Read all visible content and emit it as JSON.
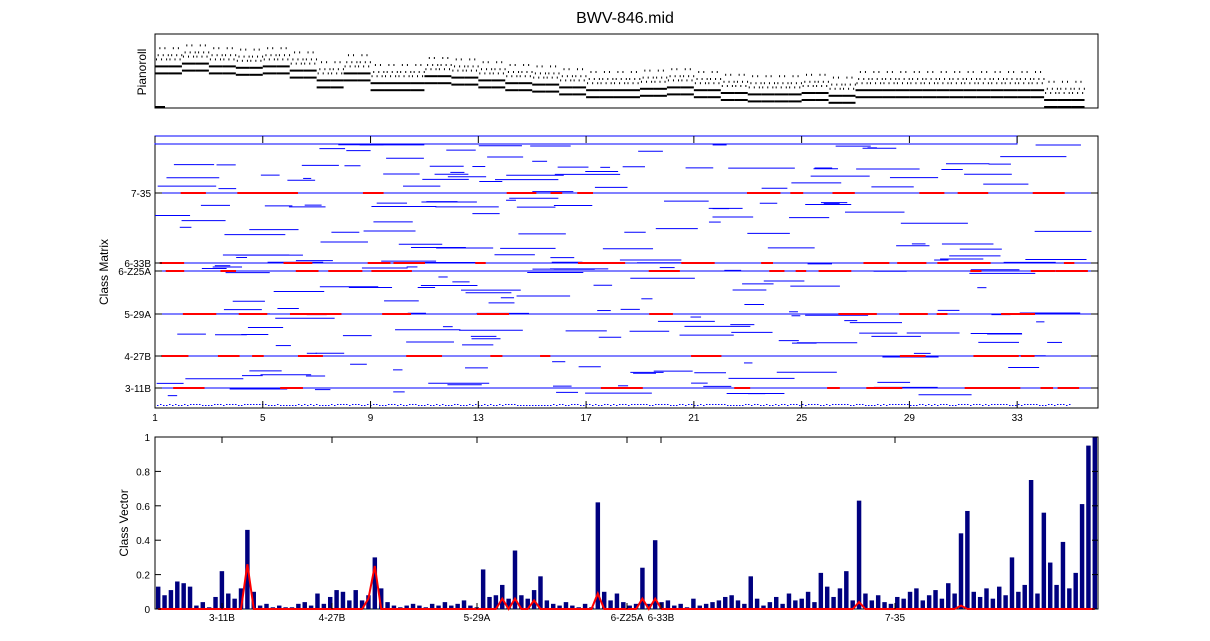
{
  "title": "BWV-846.mid",
  "panels": {
    "pianoroll": {
      "ylabel": "Pianoroll"
    },
    "matrix": {
      "ylabel": "Class Matrix"
    },
    "vector": {
      "ylabel": "Class Vector"
    }
  },
  "colors": {
    "blue": "#0000ff",
    "red": "#ff0000",
    "navy": "#00007f",
    "bar_red": "#ff0000"
  },
  "chart_data": [
    {
      "type": "scatter",
      "panel": "pianoroll",
      "title": "BWV-846.mid",
      "ylabel": "Pianoroll",
      "xlim": [
        1,
        36
      ],
      "grid": false,
      "description_series": [
        {
          "name": "",
          "x_start": [
            1,
            1.5,
            2,
            2.5,
            3,
            3.5,
            4,
            4.5,
            5,
            5.5,
            6,
            6.5,
            7,
            7.5,
            8,
            8.5,
            9,
            9.5,
            10,
            10.5,
            11,
            11.5,
            12,
            12.5,
            13,
            13.5,
            14,
            14.5,
            15,
            15.5,
            16,
            16.5,
            17,
            17.5,
            18,
            18.5,
            19,
            19.5,
            20,
            20.5,
            21,
            21.5,
            22,
            22.5,
            23,
            23.5,
            24,
            24.5,
            25,
            25.5,
            26,
            26.5,
            27,
            27.5,
            28,
            28.5,
            29,
            29.5,
            30,
            30.5,
            31,
            31.5,
            32,
            32.5,
            33,
            33.5,
            34,
            34.5,
            35
          ],
          "pitch": [
            60,
            60,
            62,
            62,
            60,
            60,
            59,
            59,
            60,
            60,
            57,
            57,
            50,
            50,
            55,
            55,
            48,
            48,
            48,
            48,
            53,
            53,
            52,
            52,
            50,
            50,
            48,
            48,
            47,
            47,
            45,
            45,
            43,
            43,
            43,
            43,
            44,
            44,
            45,
            45,
            43,
            43,
            41,
            41,
            40,
            40,
            40,
            40,
            41,
            41,
            39,
            39,
            43,
            43,
            43,
            43,
            43,
            43,
            43,
            43,
            43,
            43,
            43,
            43,
            43,
            43,
            36,
            36,
            36
          ]
        }
      ]
    },
    {
      "type": "line",
      "panel": "matrix",
      "ylabel": "Class Matrix",
      "xticks": [
        1,
        5,
        9,
        13,
        17,
        21,
        25,
        29,
        33
      ],
      "xlim": [
        1,
        36
      ],
      "ytick_labels": [
        "7-35",
        "6-33B",
        "6-Z25A",
        "5-29A",
        "4-27B",
        "3-11B"
      ]
    },
    {
      "type": "bar",
      "panel": "vector",
      "ylabel": "Class Vector",
      "ylim": [
        0,
        1
      ],
      "yticks": [
        "0",
        "0.2",
        "0.4",
        "0.6",
        "0.8",
        "1"
      ],
      "xtick_labels": [
        "3-11B",
        "4-27B",
        "5-29A",
        "6-Z25A",
        "6-33B",
        "7-35"
      ],
      "series": [
        {
          "name": "",
          "color": "#00007f",
          "values": [
            0.13,
            0.08,
            0.11,
            0.16,
            0.15,
            0.13,
            0.02,
            0.04,
            0.01,
            0.07,
            0.22,
            0.09,
            0.06,
            0.12,
            0.46,
            0.1,
            0.02,
            0.03,
            0.01,
            0.02,
            0.01,
            0.01,
            0.03,
            0.04,
            0.02,
            0.09,
            0.03,
            0.07,
            0.11,
            0.1,
            0.05,
            0.11,
            0.05,
            0.08,
            0.3,
            0.12,
            0.04,
            0.02,
            0.01,
            0.02,
            0.03,
            0.02,
            0.01,
            0.03,
            0.02,
            0.04,
            0.02,
            0.03,
            0.05,
            0.02,
            0.01,
            0.23,
            0.07,
            0.08,
            0.14,
            0.06,
            0.34,
            0.08,
            0.06,
            0.11,
            0.19,
            0.05,
            0.03,
            0.02,
            0.04,
            0.02,
            0.01,
            0.03,
            0.01,
            0.62,
            0.1,
            0.05,
            0.09,
            0.04,
            0.02,
            0.03,
            0.24,
            0.03,
            0.4,
            0.04,
            0.05,
            0.02,
            0.03,
            0.01,
            0.06,
            0.02,
            0.03,
            0.04,
            0.05,
            0.07,
            0.08,
            0.05,
            0.03,
            0.19,
            0.06,
            0.02,
            0.04,
            0.07,
            0.03,
            0.09,
            0.05,
            0.06,
            0.1,
            0.04,
            0.21,
            0.13,
            0.07,
            0.12,
            0.22,
            0.05,
            0.63,
            0.09,
            0.05,
            0.08,
            0.04,
            0.03,
            0.07,
            0.06,
            0.1,
            0.12,
            0.05,
            0.08,
            0.11,
            0.06,
            0.15,
            0.09,
            0.44,
            0.57,
            0.1,
            0.07,
            0.12,
            0.06,
            0.13,
            0.08,
            0.3,
            0.1,
            0.14,
            0.75,
            0.09,
            0.56,
            0.27,
            0.14,
            0.39,
            0.12,
            0.21,
            0.61,
            0.95,
            1.0
          ]
        },
        {
          "name": "",
          "color": "#ff0000",
          "values": [
            0,
            0,
            0,
            0,
            0,
            0,
            0,
            0,
            0,
            0,
            0,
            0,
            0,
            0,
            0.26,
            0,
            0,
            0,
            0,
            0,
            0,
            0,
            0,
            0,
            0,
            0,
            0,
            0,
            0,
            0,
            0,
            0,
            0,
            0.06,
            0.25,
            0,
            0,
            0,
            0,
            0,
            0,
            0,
            0,
            0,
            0,
            0,
            0,
            0,
            0,
            0,
            0,
            0,
            0,
            0,
            0.06,
            0,
            0.06,
            0,
            0,
            0.05,
            0,
            0,
            0,
            0,
            0,
            0,
            0,
            0,
            0,
            0.09,
            0,
            0,
            0,
            0,
            0,
            0,
            0.06,
            0,
            0.06,
            0,
            0,
            0,
            0,
            0,
            0,
            0,
            0,
            0,
            0,
            0,
            0,
            0,
            0,
            0,
            0,
            0,
            0,
            0,
            0,
            0,
            0,
            0,
            0,
            0,
            0,
            0,
            0,
            0,
            0,
            0,
            0.04,
            0,
            0,
            0,
            0,
            0,
            0,
            0,
            0,
            0,
            0,
            0,
            0,
            0,
            0,
            0,
            0.02,
            0,
            0,
            0,
            0,
            0,
            0,
            0,
            0,
            0,
            0,
            0,
            0,
            0,
            0,
            0,
            0,
            0,
            0,
            0,
            0,
            0
          ]
        }
      ]
    }
  ]
}
